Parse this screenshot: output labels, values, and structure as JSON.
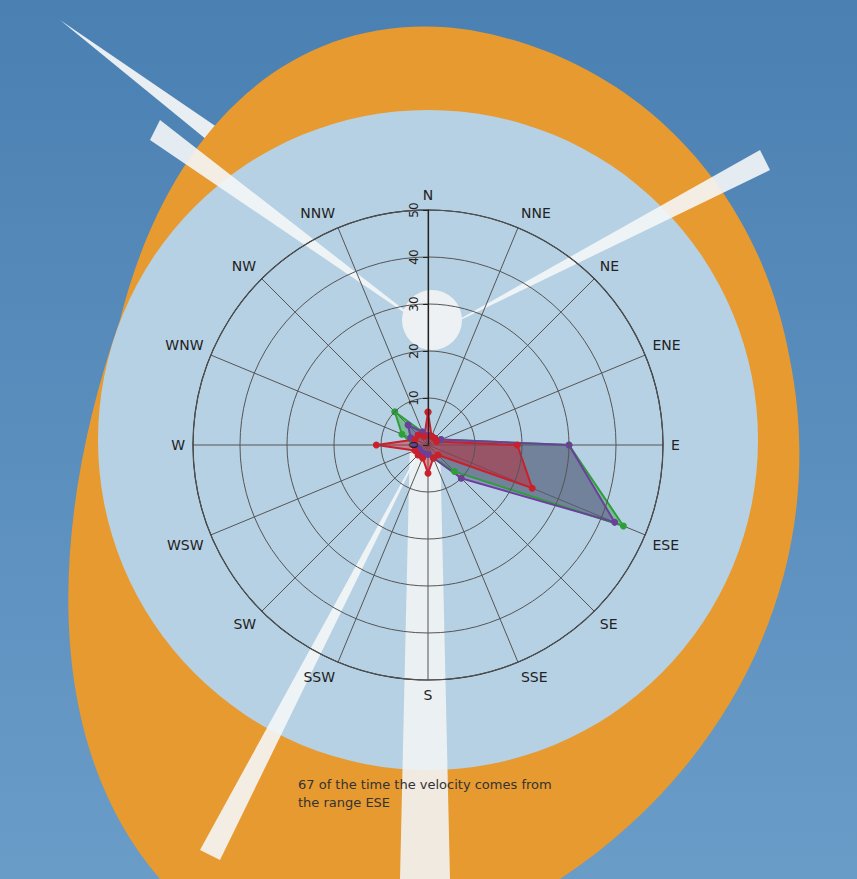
{
  "chart_data": {
    "type": "radar",
    "annotation": "67 of the time the velocity comes from the range ESE",
    "categories": [
      "N",
      "NNE",
      "NE",
      "ENE",
      "E",
      "ESE",
      "SE",
      "SSE",
      "S",
      "SSW",
      "SW",
      "WSW",
      "W",
      "WNW",
      "NW",
      "NNW"
    ],
    "series": [
      {
        "color": "#2e9e3a",
        "values": [
          2,
          2,
          2,
          3,
          30,
          45,
          8,
          3,
          2,
          2,
          2,
          2,
          3,
          6,
          10,
          3
        ]
      },
      {
        "color": "#6b3f9e",
        "values": [
          2,
          2,
          2,
          3,
          30,
          43,
          10,
          3,
          2,
          2,
          2,
          2,
          3,
          4,
          6,
          3
        ]
      },
      {
        "color": "#c8202c",
        "values": [
          7,
          2,
          2,
          2,
          19,
          24,
          3,
          3,
          6,
          3,
          3,
          3,
          11,
          3,
          3,
          2
        ]
      }
    ],
    "ylim": [
      0,
      50
    ],
    "yticks": [
      0,
      10,
      20,
      30,
      40,
      50
    ],
    "grid": true,
    "marker": "circle"
  }
}
